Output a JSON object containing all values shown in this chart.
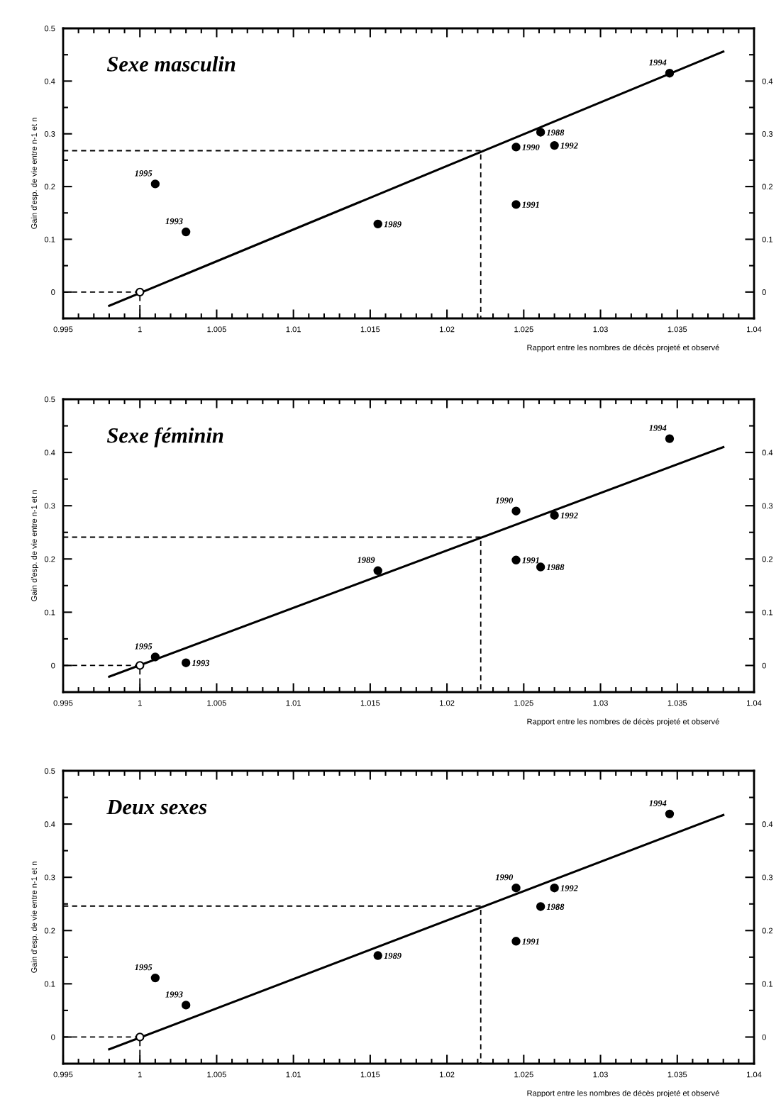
{
  "chart_data": [
    {
      "type": "scatter",
      "title": "Sexe masculin",
      "xlabel": "Rapport entre les nombres de décès projeté et observé",
      "ylabel": "Gain d'esp. de vie entre n-1 et n",
      "xlim": [
        0.995,
        1.04
      ],
      "ylim": [
        -0.05,
        0.5
      ],
      "y2lim": [
        -0.05,
        0.5
      ],
      "xticks": [
        0.995,
        {
          "value": 0.996,
          "label": null
        },
        {
          "value": 0.997,
          "label": null
        },
        {
          "value": 0.998,
          "label": null
        },
        {
          "value": 0.999,
          "label": null
        },
        1,
        {
          "value": 1.001,
          "label": null
        },
        {
          "value": 1.002,
          "label": null
        },
        {
          "value": 1.003,
          "label": null
        },
        {
          "value": 1.004,
          "label": null
        },
        1.005,
        {
          "value": 1.006,
          "label": null
        },
        {
          "value": 1.007,
          "label": null
        },
        {
          "value": 1.008,
          "label": null
        },
        {
          "value": 1.009,
          "label": null
        },
        1.01,
        {
          "value": 1.011,
          "label": null
        },
        {
          "value": 1.012,
          "label": null
        },
        {
          "value": 1.013,
          "label": null
        },
        {
          "value": 1.014,
          "label": null
        },
        1.015,
        {
          "value": 1.016,
          "label": null
        },
        {
          "value": 1.017,
          "label": null
        },
        {
          "value": 1.018,
          "label": null
        },
        {
          "value": 1.019,
          "label": null
        },
        1.02,
        {
          "value": 1.021,
          "label": null
        },
        {
          "value": 1.022,
          "label": null
        },
        {
          "value": 1.023,
          "label": null
        },
        {
          "value": 1.024,
          "label": null
        },
        1.025,
        {
          "value": 1.026,
          "label": null
        },
        {
          "value": 1.027,
          "label": null
        },
        {
          "value": 1.028,
          "label": null
        },
        {
          "value": 1.029,
          "label": null
        },
        1.03,
        {
          "value": 1.031,
          "label": null
        },
        {
          "value": 1.032,
          "label": null
        },
        {
          "value": 1.033,
          "label": null
        },
        {
          "value": 1.034,
          "label": null
        },
        1.035,
        {
          "value": 1.036,
          "label": null
        },
        {
          "value": 1.037,
          "label": null
        },
        {
          "value": 1.038,
          "label": null
        },
        {
          "value": 1.039,
          "label": null
        },
        1.04
      ],
      "yticks": [
        {
          "value": -0.05,
          "label": null
        },
        0,
        {
          "value": 0.05,
          "label": null
        },
        0.1,
        {
          "value": 0.15,
          "label": null
        },
        0.2,
        {
          "value": 0.25,
          "label": null
        },
        0.3,
        {
          "value": 0.35,
          "label": null
        },
        0.4,
        {
          "value": 0.45,
          "label": null
        },
        0.5
      ],
      "y2ticks": [
        {
          "value": -0.05,
          "label": null
        },
        0,
        {
          "value": 0.05,
          "label": null
        },
        0.1,
        {
          "value": 0.15,
          "label": null
        },
        0.2,
        {
          "value": 0.25,
          "label": null
        },
        0.3,
        {
          "value": 0.35,
          "label": null
        },
        0.4,
        {
          "value": 0.45,
          "label": null
        }
      ],
      "grid": false,
      "legend": false,
      "series": [
        {
          "type": "scatter",
          "marker": "circle",
          "color": "#000000",
          "x": [
            1.001,
            1.003,
            1.0155,
            1.0245,
            1.0245,
            1.0261,
            1.027,
            1.0345
          ],
          "values": [
            0.205,
            0.114,
            0.129,
            0.275,
            0.166,
            0.303,
            0.278,
            0.415
          ]
        },
        {
          "type": "scatter",
          "marker": "circle",
          "color": "#ffffff",
          "x": [
            1
          ],
          "values": [
            0
          ]
        },
        {
          "type": "line",
          "color": "#000000",
          "line_style": "solid",
          "x": [
            0.998,
            1.038
          ],
          "values": [
            -0.026,
            0.456
          ]
        },
        {
          "type": "line",
          "color": "#000000",
          "line_style": "dashed",
          "x": [
            0.995,
            1.0222,
            1.0222
          ],
          "values": [
            0.268,
            0.268,
            -0.05
          ]
        },
        {
          "type": "line",
          "color": "#000000",
          "line_style": "dashed",
          "x": [
            0.995,
            1,
            1
          ],
          "values": [
            0,
            0,
            -0.05
          ]
        }
      ],
      "annotations": [
        {
          "text": "1995",
          "x": 1.001,
          "y": 0.205
        },
        {
          "text": "1993",
          "x": 1.003,
          "y": 0.114
        },
        {
          "text": "1989",
          "x": 1.0155,
          "y": 0.129
        },
        {
          "text": "1990",
          "x": 1.0245,
          "y": 0.275
        },
        {
          "text": "1991",
          "x": 1.0245,
          "y": 0.166
        },
        {
          "text": "1988",
          "x": 1.0261,
          "y": 0.303
        },
        {
          "text": "1992",
          "x": 1.027,
          "y": 0.278
        },
        {
          "text": "1994",
          "x": 1.0345,
          "y": 0.415
        }
      ]
    },
    {
      "type": "scatter",
      "title": "Sexe féminin",
      "xlabel": "Rapport entre les nombres de décès projeté et observé",
      "ylabel": "Gain d'esp. de vie entre n-1 et n",
      "xlim": [
        0.995,
        1.04
      ],
      "ylim": [
        -0.05,
        0.5
      ],
      "y2lim": [
        -0.05,
        0.5
      ],
      "xticks": [
        0.995,
        {
          "value": 0.996,
          "label": null
        },
        {
          "value": 0.997,
          "label": null
        },
        {
          "value": 0.998,
          "label": null
        },
        {
          "value": 0.999,
          "label": null
        },
        1,
        {
          "value": 1.001,
          "label": null
        },
        {
          "value": 1.002,
          "label": null
        },
        {
          "value": 1.003,
          "label": null
        },
        {
          "value": 1.004,
          "label": null
        },
        1.005,
        {
          "value": 1.006,
          "label": null
        },
        {
          "value": 1.007,
          "label": null
        },
        {
          "value": 1.008,
          "label": null
        },
        {
          "value": 1.009,
          "label": null
        },
        1.01,
        {
          "value": 1.011,
          "label": null
        },
        {
          "value": 1.012,
          "label": null
        },
        {
          "value": 1.013,
          "label": null
        },
        {
          "value": 1.014,
          "label": null
        },
        1.015,
        {
          "value": 1.016,
          "label": null
        },
        {
          "value": 1.017,
          "label": null
        },
        {
          "value": 1.018,
          "label": null
        },
        {
          "value": 1.019,
          "label": null
        },
        1.02,
        {
          "value": 1.021,
          "label": null
        },
        {
          "value": 1.022,
          "label": null
        },
        {
          "value": 1.023,
          "label": null
        },
        {
          "value": 1.024,
          "label": null
        },
        1.025,
        {
          "value": 1.026,
          "label": null
        },
        {
          "value": 1.027,
          "label": null
        },
        {
          "value": 1.028,
          "label": null
        },
        {
          "value": 1.029,
          "label": null
        },
        1.03,
        {
          "value": 1.031,
          "label": null
        },
        {
          "value": 1.032,
          "label": null
        },
        {
          "value": 1.033,
          "label": null
        },
        {
          "value": 1.034,
          "label": null
        },
        1.035,
        {
          "value": 1.036,
          "label": null
        },
        {
          "value": 1.037,
          "label": null
        },
        {
          "value": 1.038,
          "label": null
        },
        {
          "value": 1.039,
          "label": null
        },
        1.04
      ],
      "yticks": [
        {
          "value": -0.05,
          "label": null
        },
        0,
        {
          "value": 0.05,
          "label": null
        },
        0.1,
        {
          "value": 0.15,
          "label": null
        },
        0.2,
        {
          "value": 0.25,
          "label": null
        },
        0.3,
        {
          "value": 0.35,
          "label": null
        },
        0.4,
        {
          "value": 0.45,
          "label": null
        },
        0.5
      ],
      "y2ticks": [
        {
          "value": -0.05,
          "label": null
        },
        0,
        {
          "value": 0.05,
          "label": null
        },
        0.1,
        {
          "value": 0.15,
          "label": null
        },
        0.2,
        {
          "value": 0.25,
          "label": null
        },
        0.3,
        {
          "value": 0.35,
          "label": null
        },
        0.4,
        {
          "value": 0.45,
          "label": null
        }
      ],
      "grid": false,
      "legend": false,
      "series": [
        {
          "type": "scatter",
          "marker": "circle",
          "color": "#000000",
          "x": [
            1.001,
            1.003,
            1.0155,
            1.0245,
            1.0245,
            1.0261,
            1.027,
            1.0345
          ],
          "values": [
            0.016,
            0.005,
            0.178,
            0.29,
            0.198,
            0.185,
            0.282,
            0.426
          ]
        },
        {
          "type": "scatter",
          "marker": "circle",
          "color": "#ffffff",
          "x": [
            1
          ],
          "values": [
            0
          ]
        },
        {
          "type": "line",
          "color": "#000000",
          "line_style": "solid",
          "x": [
            0.998,
            1.038
          ],
          "values": [
            -0.021,
            0.41
          ]
        },
        {
          "type": "line",
          "color": "#000000",
          "line_style": "dashed",
          "x": [
            0.995,
            1.0222,
            1.0222
          ],
          "values": [
            0.241,
            0.241,
            -0.05
          ]
        },
        {
          "type": "line",
          "color": "#000000",
          "line_style": "dashed",
          "x": [
            0.995,
            1,
            1
          ],
          "values": [
            0,
            0,
            -0.05
          ]
        }
      ],
      "annotations": [
        {
          "text": "1995",
          "x": 1.001,
          "y": 0.016
        },
        {
          "text": "1993",
          "x": 1.003,
          "y": 0.005
        },
        {
          "text": "1989",
          "x": 1.0155,
          "y": 0.178
        },
        {
          "text": "1990",
          "x": 1.0245,
          "y": 0.29
        },
        {
          "text": "1991",
          "x": 1.0245,
          "y": 0.198
        },
        {
          "text": "1988",
          "x": 1.0261,
          "y": 0.185
        },
        {
          "text": "1992",
          "x": 1.027,
          "y": 0.282
        },
        {
          "text": "1994",
          "x": 1.0345,
          "y": 0.426
        }
      ]
    },
    {
      "type": "scatter",
      "title": "Deux sexes",
      "xlabel": "Rapport entre les nombres de décès projeté et observé",
      "ylabel": "Gain d'esp. de vie entre n-1 et n",
      "xlim": [
        0.995,
        1.04
      ],
      "ylim": [
        -0.05,
        0.5
      ],
      "y2lim": [
        -0.05,
        0.5
      ],
      "xticks": [
        0.995,
        {
          "value": 0.996,
          "label": null
        },
        {
          "value": 0.997,
          "label": null
        },
        {
          "value": 0.998,
          "label": null
        },
        {
          "value": 0.999,
          "label": null
        },
        1,
        {
          "value": 1.001,
          "label": null
        },
        {
          "value": 1.002,
          "label": null
        },
        {
          "value": 1.003,
          "label": null
        },
        {
          "value": 1.004,
          "label": null
        },
        1.005,
        {
          "value": 1.006,
          "label": null
        },
        {
          "value": 1.007,
          "label": null
        },
        {
          "value": 1.008,
          "label": null
        },
        {
          "value": 1.009,
          "label": null
        },
        1.01,
        {
          "value": 1.011,
          "label": null
        },
        {
          "value": 1.012,
          "label": null
        },
        {
          "value": 1.013,
          "label": null
        },
        {
          "value": 1.014,
          "label": null
        },
        1.015,
        {
          "value": 1.016,
          "label": null
        },
        {
          "value": 1.017,
          "label": null
        },
        {
          "value": 1.018,
          "label": null
        },
        {
          "value": 1.019,
          "label": null
        },
        1.02,
        {
          "value": 1.021,
          "label": null
        },
        {
          "value": 1.022,
          "label": null
        },
        {
          "value": 1.023,
          "label": null
        },
        {
          "value": 1.024,
          "label": null
        },
        1.025,
        {
          "value": 1.026,
          "label": null
        },
        {
          "value": 1.027,
          "label": null
        },
        {
          "value": 1.028,
          "label": null
        },
        {
          "value": 1.029,
          "label": null
        },
        1.03,
        {
          "value": 1.031,
          "label": null
        },
        {
          "value": 1.032,
          "label": null
        },
        {
          "value": 1.033,
          "label": null
        },
        {
          "value": 1.034,
          "label": null
        },
        1.035,
        {
          "value": 1.036,
          "label": null
        },
        {
          "value": 1.037,
          "label": null
        },
        {
          "value": 1.038,
          "label": null
        },
        {
          "value": 1.039,
          "label": null
        },
        1.04
      ],
      "yticks": [
        {
          "value": -0.05,
          "label": null
        },
        0,
        {
          "value": 0.05,
          "label": null
        },
        0.1,
        {
          "value": 0.15,
          "label": null
        },
        0.2,
        {
          "value": 0.25,
          "label": null
        },
        0.3,
        {
          "value": 0.35,
          "label": null
        },
        0.4,
        {
          "value": 0.45,
          "label": null
        },
        0.5
      ],
      "y2ticks": [
        {
          "value": -0.05,
          "label": null
        },
        0,
        {
          "value": 0.05,
          "label": null
        },
        0.1,
        {
          "value": 0.15,
          "label": null
        },
        0.2,
        {
          "value": 0.25,
          "label": null
        },
        0.3,
        {
          "value": 0.35,
          "label": null
        },
        0.4,
        {
          "value": 0.45,
          "label": null
        }
      ],
      "grid": false,
      "legend": false,
      "series": [
        {
          "type": "scatter",
          "marker": "circle",
          "color": "#000000",
          "x": [
            1.001,
            1.003,
            1.0155,
            1.0245,
            1.0245,
            1.0261,
            1.027,
            1.0345
          ],
          "values": [
            0.111,
            0.06,
            0.153,
            0.28,
            0.18,
            0.245,
            0.28,
            0.419
          ]
        },
        {
          "type": "scatter",
          "marker": "circle",
          "color": "#ffffff",
          "x": [
            1
          ],
          "values": [
            0
          ]
        },
        {
          "type": "line",
          "color": "#000000",
          "line_style": "solid",
          "x": [
            0.998,
            1.038
          ],
          "values": [
            -0.023,
            0.417
          ]
        },
        {
          "type": "line",
          "color": "#000000",
          "line_style": "dashed",
          "x": [
            0.995,
            1.0222,
            1.0222
          ],
          "values": [
            0.246,
            0.246,
            -0.05
          ]
        },
        {
          "type": "line",
          "color": "#000000",
          "line_style": "dashed",
          "x": [
            0.995,
            1,
            1
          ],
          "values": [
            0,
            0,
            -0.05
          ]
        }
      ],
      "annotations": [
        {
          "text": "1995",
          "x": 1.001,
          "y": 0.111
        },
        {
          "text": "1993",
          "x": 1.003,
          "y": 0.06
        },
        {
          "text": "1989",
          "x": 1.0155,
          "y": 0.153
        },
        {
          "text": "1990",
          "x": 1.0245,
          "y": 0.28
        },
        {
          "text": "1991",
          "x": 1.0245,
          "y": 0.18
        },
        {
          "text": "1988",
          "x": 1.0261,
          "y": 0.245
        },
        {
          "text": "1992",
          "x": 1.027,
          "y": 0.28
        },
        {
          "text": "1994",
          "x": 1.0345,
          "y": 0.419
        }
      ]
    }
  ]
}
